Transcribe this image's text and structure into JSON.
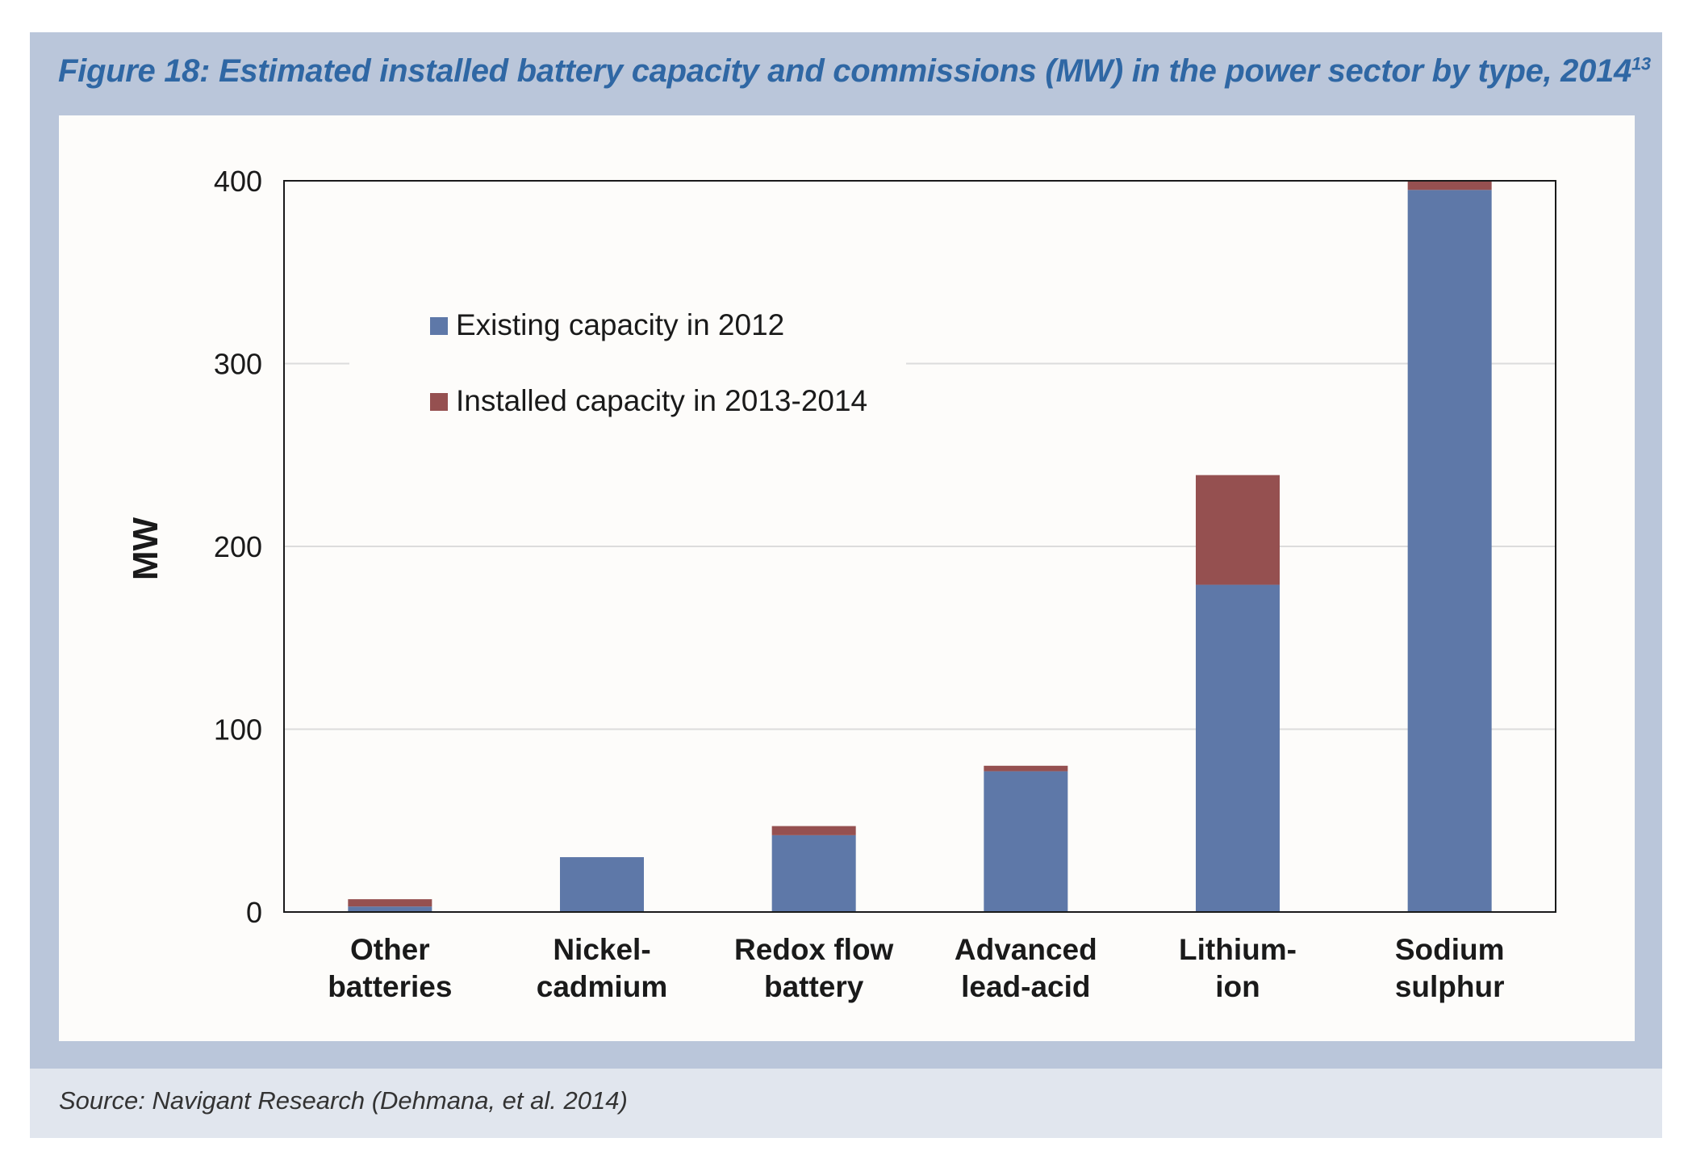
{
  "figure": {
    "title": "Figure 18: Estimated installed battery capacity and commissions (MW) in the power sector by type, 2014",
    "title_footnote": "13",
    "source": "Source: Navigant Research (Dehmana, et al. 2014)"
  },
  "colors": {
    "frame": "#bac6da",
    "title": "#2f67a4",
    "existing": "#5e78a8",
    "installed": "#955050"
  },
  "chart_data": {
    "type": "bar",
    "stacked": true,
    "ylabel": "MW",
    "ylim": [
      0,
      400
    ],
    "yticks": [
      0,
      100,
      200,
      300,
      400
    ],
    "grid": true,
    "legend_position": "upper-left",
    "categories": [
      [
        "Other",
        "batteries"
      ],
      [
        "Nickel-",
        "cadmium"
      ],
      [
        "Redox flow",
        "battery"
      ],
      [
        "Advanced",
        "lead-acid"
      ],
      [
        "Lithium-",
        "ion"
      ],
      [
        "Sodium",
        "sulphur"
      ]
    ],
    "series": [
      {
        "name": "Existing capacity in 2012",
        "color": "#5e78a8",
        "values": [
          3,
          30,
          42,
          77,
          179,
          395
        ]
      },
      {
        "name": "Installed capacity in 2013-2014",
        "color": "#955050",
        "values": [
          4,
          0,
          5,
          3,
          60,
          5
        ]
      }
    ]
  }
}
